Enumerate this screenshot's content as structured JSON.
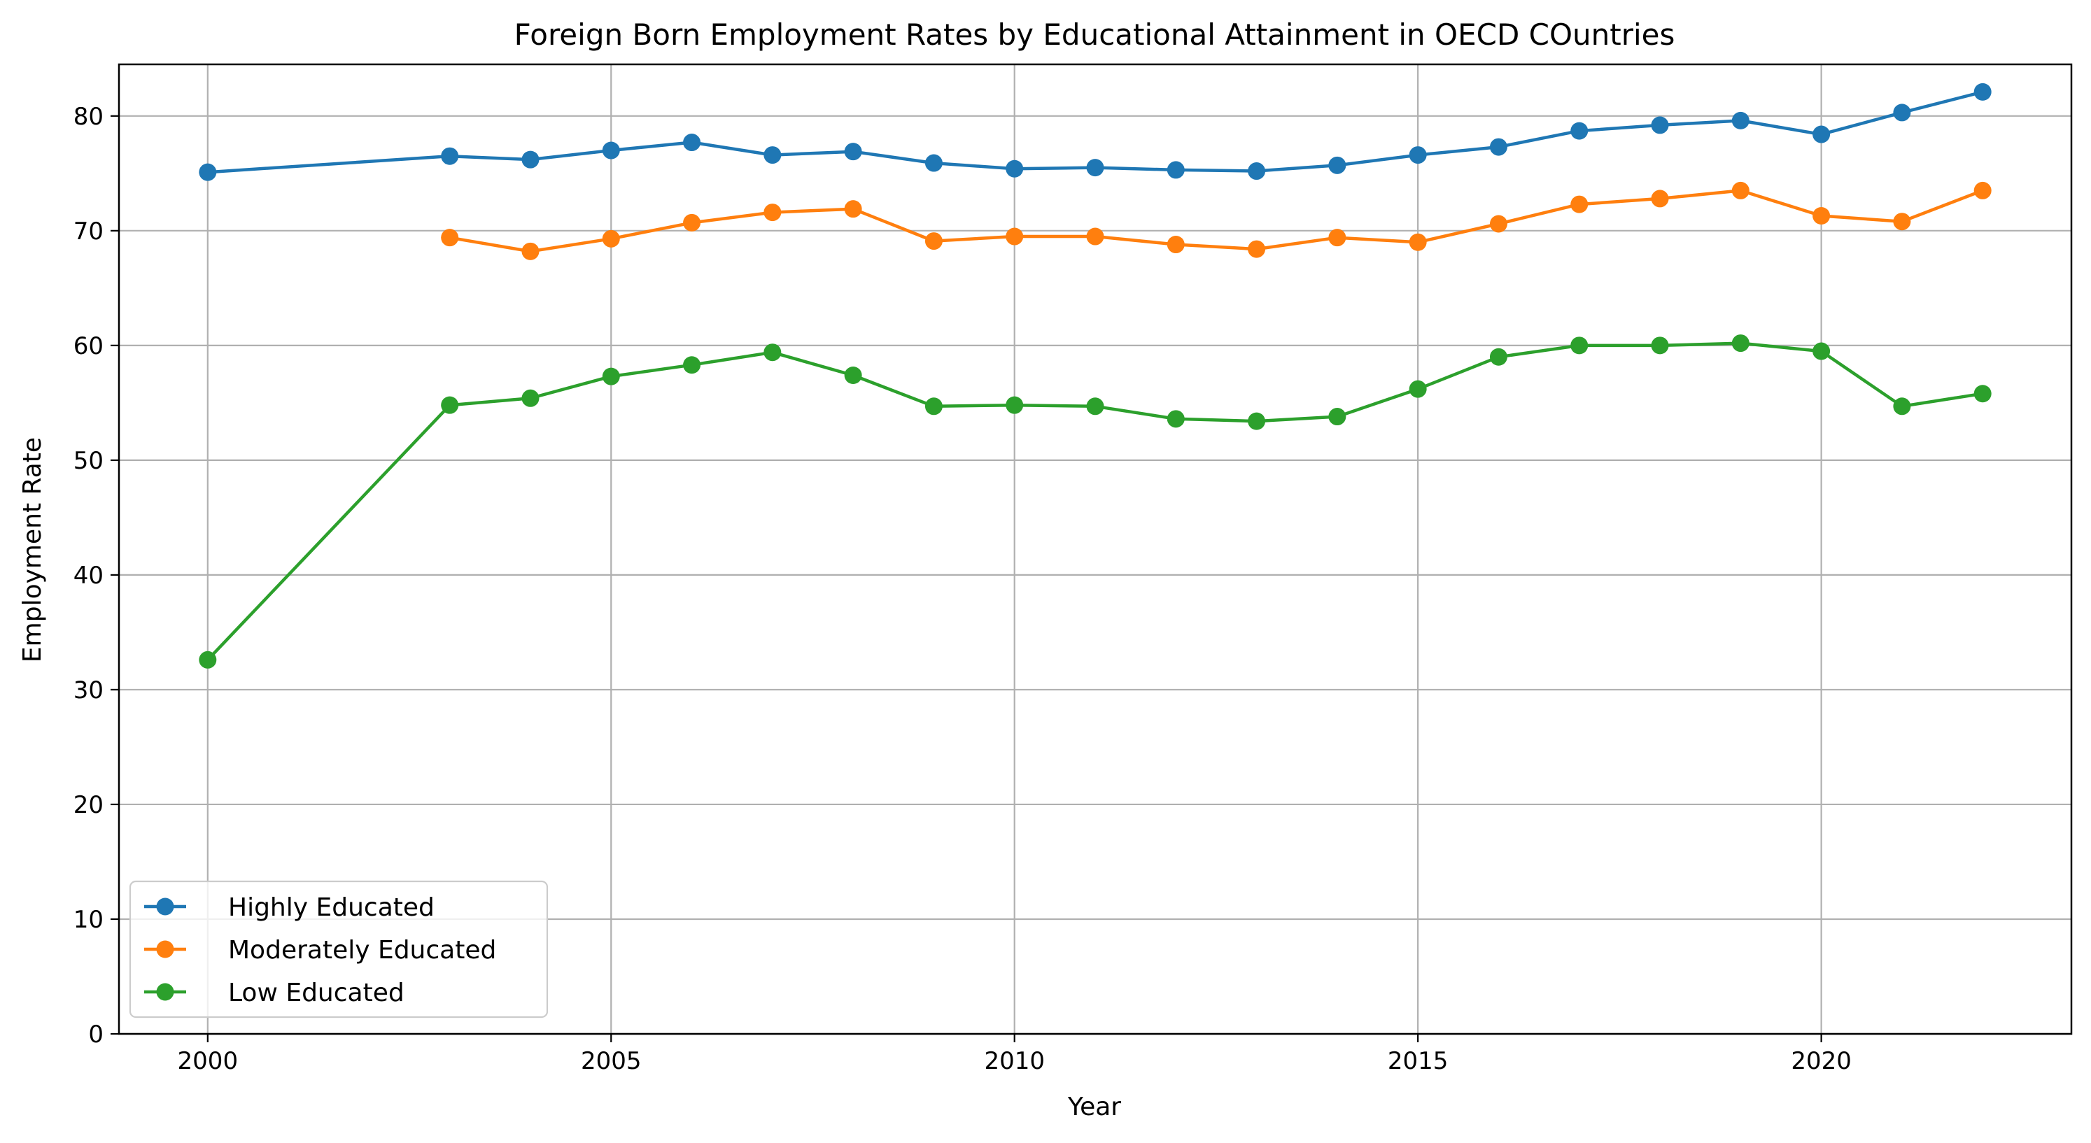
{
  "chart_data": {
    "type": "line",
    "title": "Foreign Born Employment Rates by Educational Attainment in OECD COuntries",
    "xlabel": "Year",
    "ylabel": "Employment Rate",
    "xlim": [
      1998.9,
      2023.1
    ],
    "ylim": [
      0,
      84.5
    ],
    "xticks": [
      2000,
      2005,
      2010,
      2015,
      2020
    ],
    "yticks": [
      0,
      10,
      20,
      30,
      40,
      50,
      60,
      70,
      80
    ],
    "grid": true,
    "legend": "lower-left",
    "series": [
      {
        "name": "Highly Educated",
        "color": "#1f77b4",
        "x": [
          2000,
          2003,
          2004,
          2005,
          2006,
          2007,
          2008,
          2009,
          2010,
          2011,
          2012,
          2013,
          2014,
          2015,
          2016,
          2017,
          2018,
          2019,
          2020,
          2021,
          2022
        ],
        "values": [
          75.1,
          76.5,
          76.2,
          77.0,
          77.7,
          76.6,
          76.9,
          75.9,
          75.4,
          75.5,
          75.3,
          75.2,
          75.7,
          76.6,
          77.3,
          78.7,
          79.2,
          79.6,
          78.4,
          80.3,
          82.1
        ]
      },
      {
        "name": "Moderately Educated",
        "color": "#ff7f0e",
        "x": [
          2003,
          2004,
          2005,
          2006,
          2007,
          2008,
          2009,
          2010,
          2011,
          2012,
          2013,
          2014,
          2015,
          2016,
          2017,
          2018,
          2019,
          2020,
          2021,
          2022
        ],
        "values": [
          69.4,
          68.2,
          69.3,
          70.7,
          71.6,
          71.9,
          69.1,
          69.5,
          69.5,
          68.8,
          68.4,
          69.4,
          69.0,
          70.6,
          72.3,
          72.8,
          73.5,
          71.3,
          70.8,
          73.5
        ]
      },
      {
        "name": "Low Educated",
        "color": "#2ca02c",
        "x": [
          2000,
          2003,
          2004,
          2005,
          2006,
          2007,
          2008,
          2009,
          2010,
          2011,
          2012,
          2013,
          2014,
          2015,
          2016,
          2017,
          2018,
          2019,
          2020,
          2021,
          2022
        ],
        "values": [
          32.6,
          54.8,
          55.4,
          57.3,
          58.3,
          59.4,
          57.4,
          54.7,
          54.8,
          54.7,
          53.6,
          53.4,
          53.8,
          56.2,
          59.0,
          60.0,
          60.0,
          60.2,
          59.5,
          54.7,
          55.8
        ]
      }
    ]
  }
}
